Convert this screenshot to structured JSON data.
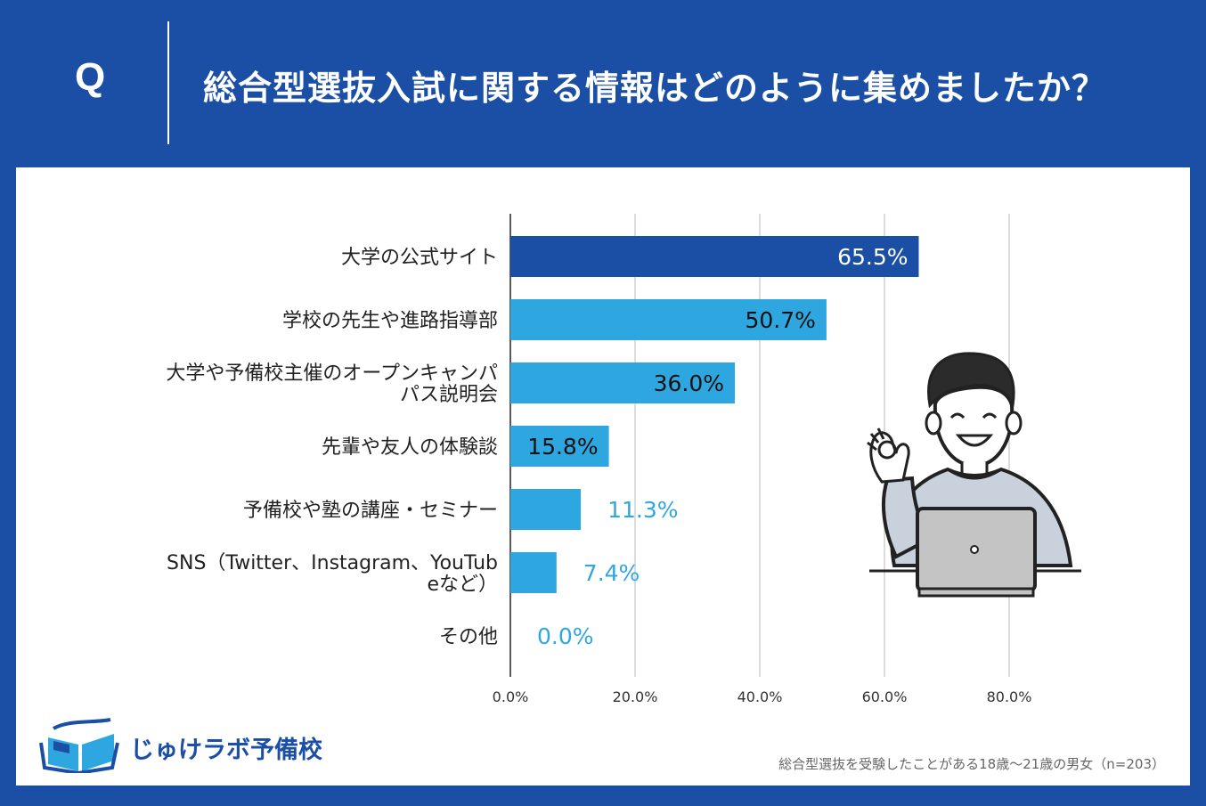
{
  "header": {
    "q_label": "Q",
    "question": "総合型選抜入試に関する情報はどのように集めましたか？"
  },
  "colors": {
    "background": "#1a4fa5",
    "bar_top": "#1a4fa5",
    "bar": "#2ea7e0",
    "label_outside": "#2ea7e0"
  },
  "chart_data": {
    "type": "bar",
    "orientation": "horizontal",
    "categories": [
      "大学の公式サイト",
      "学校の先生や進路指導部",
      "大学や予備校主催のオープンキャンパス説明会",
      "先輩や友人の体験談",
      "予備校や塾の講座・セミナー",
      "SNS（Twitter、Instagram、YouTubeなど）",
      "その他"
    ],
    "category_lines": [
      [
        "大学の公式サイト"
      ],
      [
        "学校の先生や進路指導部"
      ],
      [
        "大学や予備校主催のオープンキャンパ",
        "パス説明会"
      ],
      [
        "先輩や友人の体験談"
      ],
      [
        "予備校や塾の講座・セミナー"
      ],
      [
        "SNS（Twitter、Instagram、YouTub",
        "eなど）"
      ],
      [
        "その他"
      ]
    ],
    "values": [
      65.5,
      50.7,
      36.0,
      15.8,
      11.3,
      7.4,
      0.0
    ],
    "value_labels": [
      "65.5%",
      "50.7%",
      "36.0%",
      "15.8%",
      "11.3%",
      "7.4%",
      "0.0%"
    ],
    "xlim": [
      0,
      80
    ],
    "x_ticks": [
      "0.0%",
      "20.0%",
      "40.0%",
      "60.0%",
      "80.0%"
    ],
    "grid": true
  },
  "footnote": "総合型選抜を受験したことがある18歳〜21歳の男女（n=203）",
  "logo": {
    "text": "じゅけラボ予備校",
    "icon": "open-book-icon"
  },
  "illustration": "person-ok-sign-with-laptop"
}
